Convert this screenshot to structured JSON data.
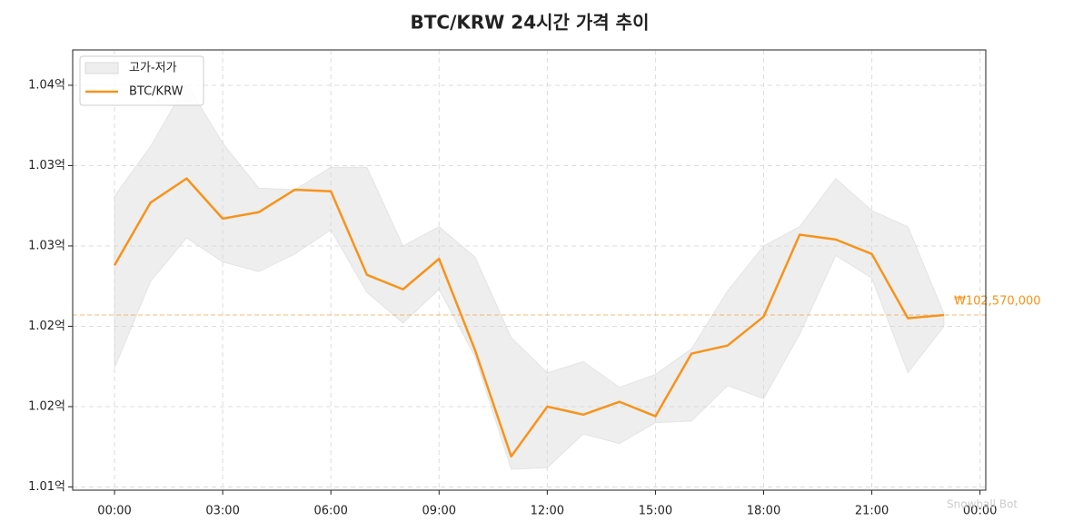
{
  "chart_data": {
    "type": "line",
    "title": "BTC/KRW 24시간 가격 추이",
    "x": [
      0,
      1,
      2,
      3,
      4,
      5,
      6,
      7,
      8,
      9,
      10,
      11,
      12,
      13,
      14,
      15,
      16,
      17,
      18,
      19,
      20,
      21,
      22,
      23
    ],
    "series": [
      {
        "name": "BTC/KRW",
        "color": "#f7931a",
        "values": [
          102880000,
          103270000,
          103420000,
          103170000,
          103210000,
          103350000,
          103340000,
          102820000,
          102730000,
          102920000,
          102350000,
          101690000,
          102000000,
          101950000,
          102030000,
          101940000,
          102330000,
          102380000,
          102560000,
          103070000,
          103040000,
          102950000,
          102550000,
          102570000
        ]
      }
    ],
    "band": {
      "name": "고가-저가",
      "color": "#d9d9d9",
      "high": [
        103310000,
        103620000,
        104010000,
        103640000,
        103360000,
        103350000,
        103490000,
        103490000,
        103000000,
        103120000,
        102930000,
        102430000,
        102210000,
        102280000,
        102120000,
        102200000,
        102360000,
        102720000,
        103000000,
        103120000,
        103420000,
        103220000,
        103120000,
        102580000
      ],
      "low": [
        102240000,
        102780000,
        103050000,
        102900000,
        102840000,
        102950000,
        103100000,
        102710000,
        102520000,
        102730000,
        102310000,
        101610000,
        101620000,
        101830000,
        101770000,
        101900000,
        101910000,
        102130000,
        102050000,
        102450000,
        102940000,
        102800000,
        102210000,
        102500000
      ]
    },
    "reference_line": {
      "value": 102570000,
      "label": "₩102,570,000",
      "color": "#f7931a"
    },
    "xlim": [
      -1.16,
      24.16
    ],
    "xticks": [
      {
        "value": 0,
        "label": "00:00"
      },
      {
        "value": 3,
        "label": "03:00"
      },
      {
        "value": 6,
        "label": "06:00"
      },
      {
        "value": 9,
        "label": "09:00"
      },
      {
        "value": 12,
        "label": "12:00"
      },
      {
        "value": 15,
        "label": "15:00"
      },
      {
        "value": 18,
        "label": "18:00"
      },
      {
        "value": 21,
        "label": "21:00"
      },
      {
        "value": 24,
        "label": "00:00"
      }
    ],
    "ylim": [
      101480000,
      104220000
    ],
    "yticks": [
      {
        "value": 101500000,
        "label": "1.01억"
      },
      {
        "value": 102000000,
        "label": "1.02억"
      },
      {
        "value": 102500000,
        "label": "1.02억"
      },
      {
        "value": 103000000,
        "label": "1.03억"
      },
      {
        "value": 103500000,
        "label": "1.03억"
      },
      {
        "value": 104000000,
        "label": "1.04억"
      }
    ],
    "grid": true,
    "legend": "upper left",
    "watermark": "Snowball Bot"
  }
}
